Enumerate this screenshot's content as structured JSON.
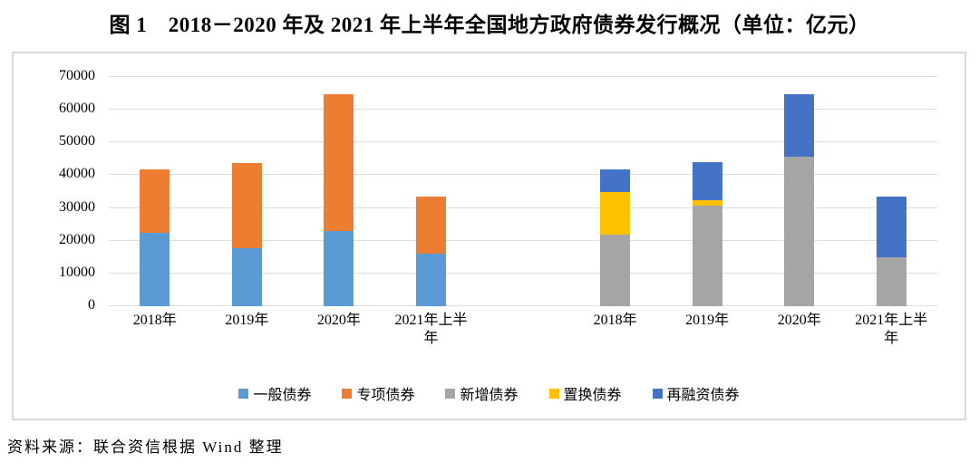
{
  "page": {
    "title": "图 1　2018－2020 年及 2021 年上半年全国地方政府债券发行概况（单位：亿元）",
    "source_note": "资料来源：联合资信根据 Wind 整理"
  },
  "chart_data": {
    "type": "bar",
    "stacked": true,
    "unit": "亿元",
    "title": "图 1　2018－2020 年及 2021 年上半年全国地方政府债券发行概况（单位：亿元）",
    "ylim": [
      0,
      70000
    ],
    "yticks": [
      0,
      10000,
      20000,
      30000,
      40000,
      50000,
      60000,
      70000
    ],
    "grid": true,
    "gridline_color": "#DCDCDC",
    "legend_position": "bottom",
    "legend": [
      "一般债券",
      "专项债券",
      "新增债券",
      "置换债券",
      "再融资债券"
    ],
    "clusters": [
      {
        "categories": [
          "2018年",
          "2019年",
          "2020年",
          "2021年上半年"
        ],
        "series": [
          {
            "name": "一般债券",
            "color": "#5B9BD5",
            "values": [
              22200,
              17700,
              23000,
              16000
            ]
          },
          {
            "name": "专项债券",
            "color": "#ED7D31",
            "values": [
              19500,
              25900,
              41400,
              17400
            ]
          }
        ]
      },
      {
        "categories": [
          "2018年",
          "2019年",
          "2020年",
          "2021年上半年"
        ],
        "series": [
          {
            "name": "新增债券",
            "color": "#A5A5A5",
            "values": [
              21700,
              30600,
              45500,
              14800
            ]
          },
          {
            "name": "置换债券",
            "color": "#FFC000",
            "values": [
              13100,
              1600,
              0,
              0
            ]
          },
          {
            "name": "再融资债券",
            "color": "#4472C4",
            "values": [
              6800,
              11500,
              18900,
              18600
            ]
          }
        ]
      }
    ]
  }
}
